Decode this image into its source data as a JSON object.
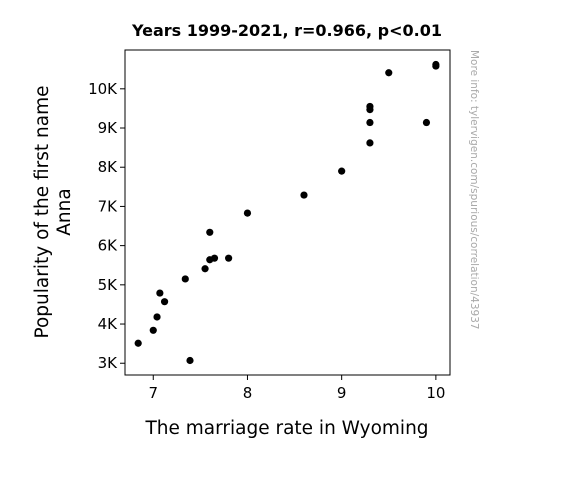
{
  "chart_data": {
    "type": "scatter",
    "title": "Years 1999-2021, r=0.966, p<0.01",
    "xlabel": "The marriage rate in Wyoming",
    "ylabel_lines": [
      "Popularity of the first name",
      "Anna"
    ],
    "watermark": "More info: tylervigen.com/spurious/correlation/43937",
    "xlim": [
      6.7,
      10.15
    ],
    "ylim": [
      2700,
      10990
    ],
    "x_ticks": [
      {
        "value": 7,
        "label": "7"
      },
      {
        "value": 8,
        "label": "8"
      },
      {
        "value": 9,
        "label": "9"
      },
      {
        "value": 10,
        "label": "10"
      }
    ],
    "y_ticks": [
      {
        "value": 3000,
        "label": "3K"
      },
      {
        "value": 4000,
        "label": "4K"
      },
      {
        "value": 5000,
        "label": "5K"
      },
      {
        "value": 6000,
        "label": "6K"
      },
      {
        "value": 7000,
        "label": "7K"
      },
      {
        "value": 8000,
        "label": "8K"
      },
      {
        "value": 9000,
        "label": "9K"
      },
      {
        "value": 10000,
        "label": "10K"
      }
    ],
    "marker_color": "#000000",
    "grid": false,
    "points": [
      {
        "x": 6.84,
        "y": 3510
      },
      {
        "x": 7.0,
        "y": 3840
      },
      {
        "x": 7.04,
        "y": 4180
      },
      {
        "x": 7.07,
        "y": 4790
      },
      {
        "x": 7.12,
        "y": 4570
      },
      {
        "x": 7.34,
        "y": 5150
      },
      {
        "x": 7.39,
        "y": 3070
      },
      {
        "x": 7.55,
        "y": 5410
      },
      {
        "x": 7.6,
        "y": 6340
      },
      {
        "x": 7.6,
        "y": 5640
      },
      {
        "x": 7.65,
        "y": 5680
      },
      {
        "x": 7.8,
        "y": 5680
      },
      {
        "x": 8.0,
        "y": 6830
      },
      {
        "x": 8.6,
        "y": 7290
      },
      {
        "x": 9.0,
        "y": 7900
      },
      {
        "x": 9.3,
        "y": 8620
      },
      {
        "x": 9.3,
        "y": 9140
      },
      {
        "x": 9.3,
        "y": 9470
      },
      {
        "x": 9.3,
        "y": 9550
      },
      {
        "x": 9.5,
        "y": 10410
      },
      {
        "x": 9.9,
        "y": 9140
      },
      {
        "x": 10.0,
        "y": 10580
      },
      {
        "x": 10.0,
        "y": 10620
      }
    ]
  }
}
